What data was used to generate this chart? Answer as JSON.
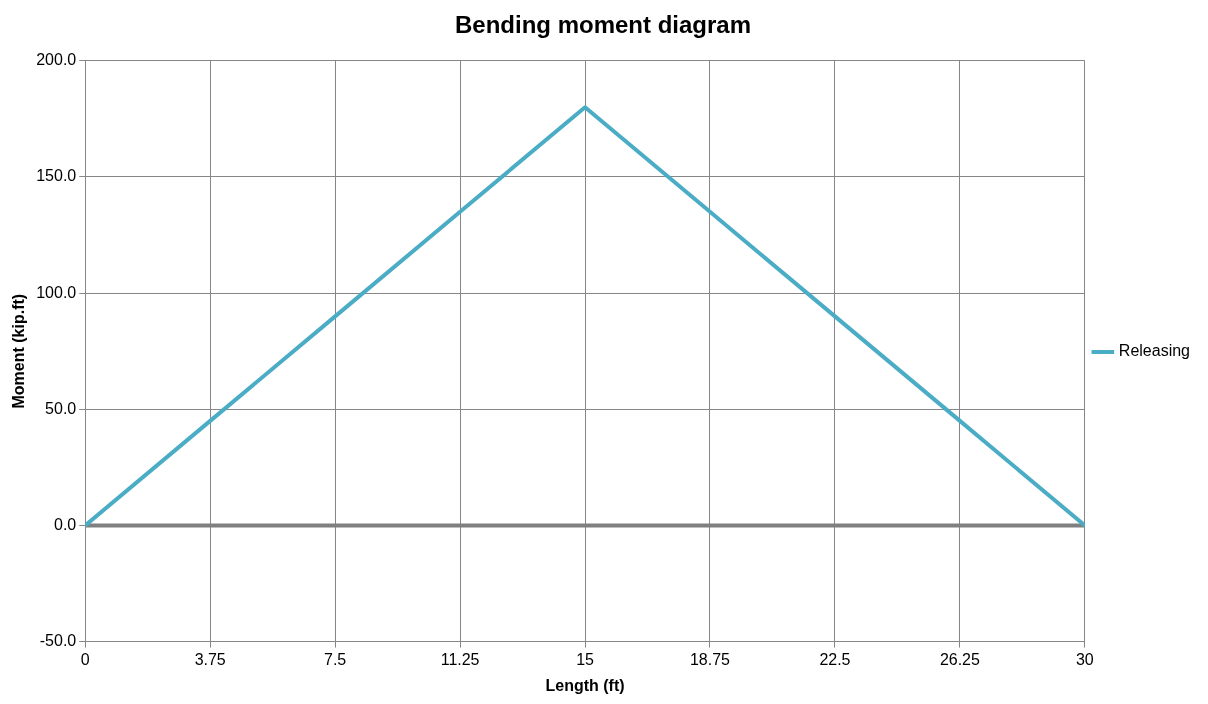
{
  "chart_data": {
    "type": "line",
    "title": "Bending moment diagram",
    "xlabel": "Length (ft)",
    "ylabel": "Moment (kip.ft)",
    "x": [
      0,
      3.75,
      7.5,
      11.25,
      15,
      18.75,
      22.5,
      26.25,
      30
    ],
    "series": [
      {
        "name": "Releasing",
        "color": "#4bacc6",
        "values": [
          0,
          45,
          90,
          135,
          180,
          135,
          90,
          45,
          0
        ]
      }
    ],
    "xlim": [
      0,
      30
    ],
    "xticks": [
      0,
      3.75,
      7.5,
      11.25,
      15,
      18.75,
      22.5,
      26.25,
      30
    ],
    "ylim": [
      -50,
      200
    ],
    "yticks": [
      {
        "value": -50,
        "label": "-50.0"
      },
      {
        "value": 0,
        "label": "0.0"
      },
      {
        "value": 50,
        "label": "50.0"
      },
      {
        "value": 100,
        "label": "100.0"
      },
      {
        "value": 150,
        "label": "150.0"
      },
      {
        "value": 200,
        "label": "200.0"
      }
    ],
    "ref_lines": [
      {
        "axis": "y",
        "value": 0,
        "color": "#808080"
      }
    ],
    "grid": true,
    "legend": "right",
    "marker": "none",
    "line_style": "solid"
  }
}
